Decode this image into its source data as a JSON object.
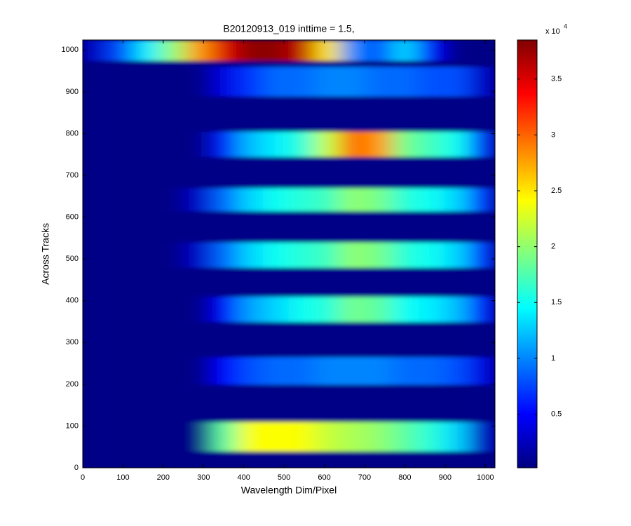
{
  "chart_data": {
    "type": "heatmap",
    "title": "B20120913_019 inttime = 1.5,",
    "xlabel": "Wavelength Dim/Pixel",
    "ylabel": "Across Tracks",
    "colormap": "jet",
    "xlim": [
      0,
      1024
    ],
    "ylim": [
      0,
      1024
    ],
    "xticks": [
      0,
      100,
      200,
      300,
      400,
      500,
      600,
      700,
      800,
      900,
      1000
    ],
    "yticks": [
      0,
      100,
      200,
      300,
      400,
      500,
      600,
      700,
      800,
      900,
      1000
    ],
    "clim": [
      0.02,
      3.85
    ],
    "colorbar_ticks": [
      0.5,
      1,
      1.5,
      2,
      2.5,
      3,
      3.5
    ],
    "colorbar_multiplier": "x 10",
    "colorbar_exponent": "4",
    "xbins": [
      0,
      64,
      128,
      192,
      256,
      320,
      384,
      448,
      512,
      576,
      640,
      704,
      768,
      832,
      896,
      960,
      1024
    ],
    "ybins": [
      0,
      40,
      110,
      200,
      265,
      350,
      410,
      480,
      540,
      615,
      670,
      745,
      805,
      890,
      960,
      975,
      1024
    ],
    "values": [
      [
        0.05,
        0.05,
        0.05,
        0.05,
        0.05,
        0.05,
        0.05,
        0.05,
        0.05,
        0.05,
        0.05,
        0.05,
        0.05,
        0.05,
        0.05,
        0.05
      ],
      [
        0.05,
        0.05,
        0.05,
        0.05,
        0.05,
        1.8,
        2.4,
        2.4,
        2.4,
        2.2,
        2.1,
        2.0,
        1.8,
        1.6,
        1.3,
        0.3
      ],
      [
        0.05,
        0.05,
        0.05,
        0.05,
        0.05,
        0.05,
        0.05,
        0.05,
        0.05,
        0.05,
        0.05,
        0.05,
        0.05,
        0.05,
        0.05,
        0.05
      ],
      [
        0.05,
        0.05,
        0.05,
        0.05,
        0.05,
        0.5,
        0.8,
        0.9,
        0.9,
        1.0,
        1.0,
        1.0,
        0.9,
        0.9,
        0.8,
        0.4
      ],
      [
        0.05,
        0.05,
        0.05,
        0.05,
        0.05,
        0.05,
        0.05,
        0.05,
        0.05,
        0.05,
        0.05,
        0.05,
        0.05,
        0.05,
        0.05,
        0.05
      ],
      [
        0.05,
        0.05,
        0.05,
        0.05,
        0.05,
        0.5,
        1.1,
        1.3,
        1.5,
        1.6,
        1.9,
        1.8,
        1.5,
        1.4,
        1.2,
        0.6
      ],
      [
        0.05,
        0.05,
        0.05,
        0.05,
        0.05,
        0.05,
        0.05,
        0.05,
        0.05,
        0.05,
        0.05,
        0.05,
        0.05,
        0.05,
        0.05,
        0.05
      ],
      [
        0.05,
        0.05,
        0.05,
        0.05,
        0.3,
        0.9,
        1.3,
        1.5,
        1.6,
        1.7,
        2.0,
        1.9,
        1.6,
        1.5,
        1.3,
        0.7
      ],
      [
        0.05,
        0.05,
        0.05,
        0.05,
        0.05,
        0.05,
        0.05,
        0.05,
        0.05,
        0.05,
        0.05,
        0.05,
        0.05,
        0.05,
        0.05,
        0.05
      ],
      [
        0.05,
        0.05,
        0.05,
        0.05,
        0.3,
        0.9,
        1.3,
        1.5,
        1.6,
        1.7,
        2.0,
        1.9,
        1.6,
        1.5,
        1.3,
        0.7
      ],
      [
        0.05,
        0.05,
        0.05,
        0.05,
        0.05,
        0.05,
        0.05,
        0.05,
        0.05,
        0.05,
        0.05,
        0.05,
        0.05,
        0.05,
        0.05,
        0.05
      ],
      [
        0.05,
        0.05,
        0.05,
        0.05,
        0.05,
        0.6,
        1.2,
        1.4,
        1.6,
        2.2,
        3.0,
        2.8,
        1.9,
        1.7,
        1.5,
        0.7
      ],
      [
        0.05,
        0.05,
        0.05,
        0.05,
        0.05,
        0.05,
        0.05,
        0.05,
        0.05,
        0.05,
        0.05,
        0.05,
        0.05,
        0.05,
        0.05,
        0.05
      ],
      [
        0.05,
        0.05,
        0.05,
        0.05,
        0.05,
        0.4,
        0.7,
        0.9,
        0.9,
        1.0,
        1.0,
        0.9,
        0.9,
        0.8,
        0.8,
        0.3
      ],
      [
        0.05,
        0.05,
        0.05,
        0.05,
        0.05,
        0.05,
        0.05,
        0.05,
        0.05,
        0.05,
        0.05,
        0.05,
        0.05,
        0.05,
        0.05,
        0.05
      ],
      [
        0.3,
        0.8,
        1.4,
        2.0,
        2.8,
        3.5,
        3.8,
        3.8,
        3.6,
        2.5,
        1.0,
        0.8,
        1.3,
        0.5,
        0.05,
        0.05
      ]
    ]
  }
}
